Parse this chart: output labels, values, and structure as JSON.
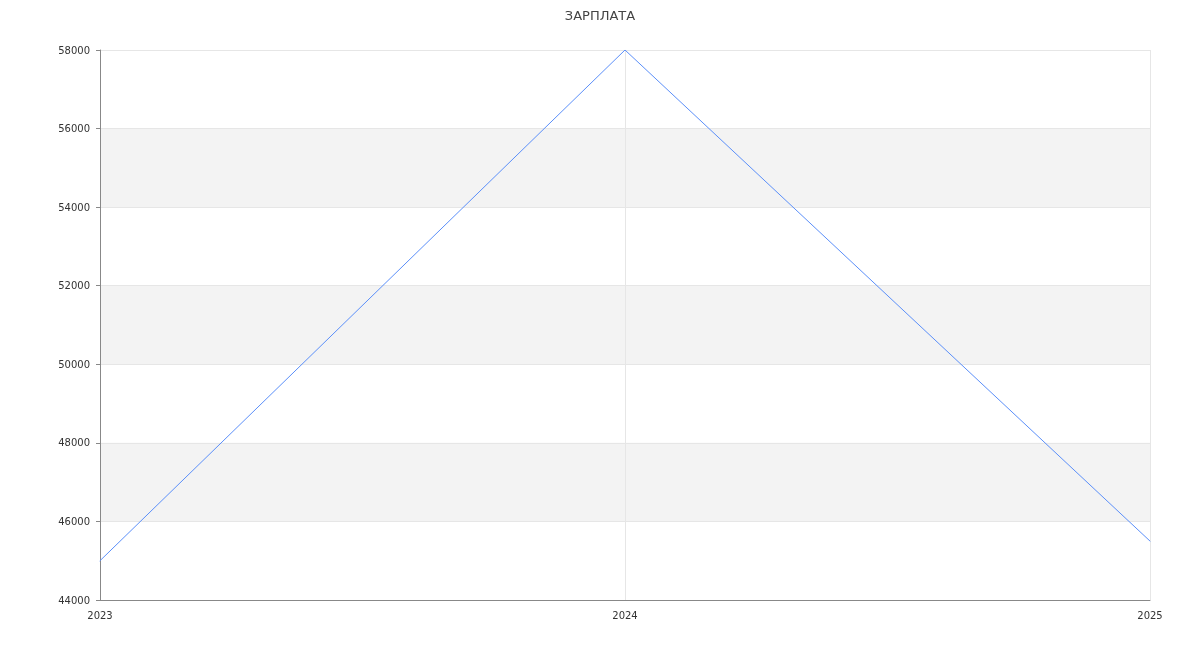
{
  "chart_data": {
    "type": "line",
    "title": "ЗАРПЛАТА",
    "categories": [
      "2023",
      "2024",
      "2025"
    ],
    "series": [
      {
        "color": "#5b8ff9",
        "values": [
          45000,
          58000,
          45500
        ]
      }
    ],
    "ylim": [
      44000,
      58000
    ],
    "yticks": [
      44000,
      46000,
      48000,
      50000,
      52000,
      54000,
      56000,
      58000
    ],
    "grid": true,
    "marker": "none",
    "line_style": "solid"
  }
}
